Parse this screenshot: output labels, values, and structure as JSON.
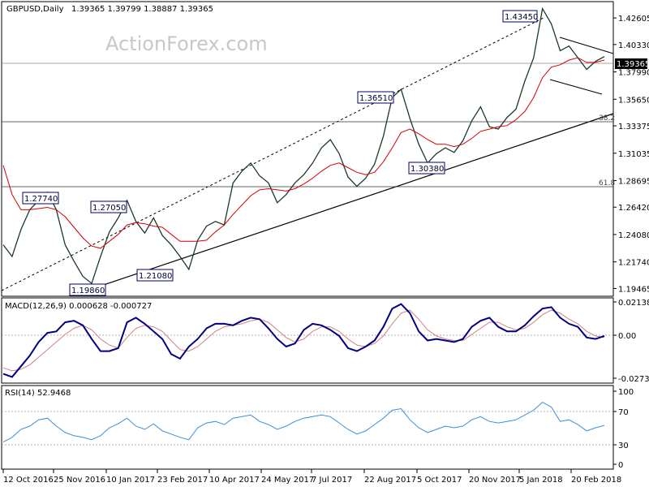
{
  "header": {
    "symbol": "GBPUSD,Daily",
    "ohlc": "1.39365 1.39799 1.38887 1.39365"
  },
  "watermark": "ActionForex.com",
  "chart_data": [
    {
      "type": "line",
      "title": "GBPUSD,Daily",
      "yticks": [
        "1.42605",
        "1.40330",
        "1.37990",
        "1.35650",
        "1.33375",
        "1.31035",
        "1.28695",
        "1.26420",
        "1.24080",
        "1.21740",
        "1.19465"
      ],
      "ylim": [
        1.188,
        1.44
      ],
      "current_price_label": "1.39365",
      "xticks": [
        "12 Oct 2016",
        "25 Nov 2016",
        "10 Jan 2017",
        "23 Feb 2017",
        "10 Apr 2017",
        "24 May 2017",
        "7 Jul 2017",
        "22 Aug 2017",
        "5 Oct 2017",
        "20 Nov 2017",
        "5 Jan 2018",
        "20 Feb 2018"
      ],
      "annotations": [
        "1.43450",
        "1.36510",
        "1.30380",
        "1.27740",
        "1.27050",
        "1.21080",
        "1.19860"
      ],
      "fib_labels": [
        "38.2",
        "61.8"
      ],
      "series": [
        {
          "values": [
            1.232,
            1.222,
            1.245,
            1.262,
            1.27,
            1.277,
            1.262,
            1.232,
            1.218,
            1.205,
            1.199,
            1.222,
            1.243,
            1.255,
            1.27,
            1.252,
            1.242,
            1.255,
            1.24,
            1.232,
            1.222,
            1.211,
            1.236,
            1.248,
            1.252,
            1.249,
            1.285,
            1.295,
            1.302,
            1.291,
            1.285,
            1.268,
            1.275,
            1.285,
            1.292,
            1.302,
            1.315,
            1.322,
            1.31,
            1.29,
            1.282,
            1.289,
            1.301,
            1.325,
            1.358,
            1.365,
            1.34,
            1.318,
            1.302,
            1.31,
            1.315,
            1.311,
            1.321,
            1.338,
            1.35,
            1.333,
            1.331,
            1.341,
            1.348,
            1.372,
            1.392,
            1.434,
            1.421,
            1.398,
            1.402,
            1.392,
            1.382,
            1.389,
            1.393
          ]
        },
        {
          "values": [
            1.3,
            1.275,
            1.262,
            1.262,
            1.263,
            1.264,
            1.262,
            1.256,
            1.247,
            1.238,
            1.231,
            1.229,
            1.235,
            1.241,
            1.249,
            1.251,
            1.25,
            1.248,
            1.247,
            1.241,
            1.235,
            1.235,
            1.235,
            1.236,
            1.243,
            1.249,
            1.258,
            1.266,
            1.274,
            1.279,
            1.28,
            1.279,
            1.278,
            1.28,
            1.284,
            1.289,
            1.295,
            1.3,
            1.302,
            1.298,
            1.294,
            1.292,
            1.294,
            1.303,
            1.315,
            1.328,
            1.331,
            1.327,
            1.322,
            1.318,
            1.318,
            1.316,
            1.318,
            1.323,
            1.329,
            1.331,
            1.333,
            1.334,
            1.339,
            1.346,
            1.358,
            1.375,
            1.384,
            1.386,
            1.39,
            1.392,
            1.388,
            1.388,
            1.39
          ]
        }
      ]
    },
    {
      "type": "line",
      "title": "MACD(12,26,9) 0.000628 -0.000727",
      "yticks": [
        "0.021384",
        "0.00",
        "-0.027353"
      ],
      "ylim": [
        -0.029,
        0.025
      ],
      "series": [
        {
          "values": [
            -0.024,
            -0.026,
            -0.019,
            -0.012,
            -0.003,
            0.003,
            0.004,
            0.01,
            0.011,
            0.008,
            -0.001,
            -0.009,
            -0.009,
            -0.007,
            0.01,
            0.013,
            0.009,
            0.004,
            -0.001,
            -0.011,
            -0.014,
            -0.006,
            -0.001,
            0.006,
            0.009,
            0.009,
            0.008,
            0.011,
            0.013,
            0.012,
            0.006,
            -0.001,
            -0.006,
            -0.004,
            0.005,
            0.009,
            0.008,
            0.005,
            0.001,
            -0.007,
            -0.009,
            -0.006,
            -0.002,
            0.007,
            0.019,
            0.022,
            0.016,
            0.004,
            -0.002,
            -0.001,
            -0.002,
            -0.003,
            -0.001,
            0.007,
            0.011,
            0.013,
            0.007,
            0.004,
            0.004,
            0.008,
            0.014,
            0.019,
            0.02,
            0.013,
            0.009,
            0.007,
            0.0,
            -0.001,
            0.001
          ]
        },
        {
          "values": [
            -0.02,
            -0.022,
            -0.021,
            -0.018,
            -0.013,
            -0.008,
            -0.003,
            0.002,
            0.006,
            0.008,
            0.005,
            -0.001,
            -0.005,
            -0.007,
            0.0,
            0.006,
            0.008,
            0.007,
            0.004,
            -0.002,
            -0.008,
            -0.009,
            -0.006,
            -0.001,
            0.004,
            0.007,
            0.008,
            0.009,
            0.011,
            0.012,
            0.01,
            0.005,
            0.0,
            -0.003,
            -0.001,
            0.004,
            0.007,
            0.007,
            0.004,
            -0.001,
            -0.005,
            -0.006,
            -0.004,
            0.001,
            0.009,
            0.016,
            0.018,
            0.012,
            0.005,
            0.001,
            -0.001,
            -0.002,
            -0.002,
            0.002,
            0.006,
            0.01,
            0.01,
            0.007,
            0.005,
            0.006,
            0.01,
            0.015,
            0.018,
            0.016,
            0.012,
            0.009,
            0.004,
            0.001,
            0.0
          ]
        }
      ]
    },
    {
      "type": "line",
      "title": "RSI(14) 52.9468",
      "yticks": [
        "100",
        "70",
        "30",
        "0"
      ],
      "ylim": [
        0,
        100
      ],
      "series": [
        {
          "values": [
            32,
            38,
            48,
            52,
            60,
            62,
            52,
            44,
            40,
            38,
            35,
            40,
            50,
            55,
            62,
            52,
            48,
            55,
            46,
            42,
            38,
            35,
            50,
            56,
            58,
            54,
            62,
            64,
            66,
            58,
            54,
            48,
            52,
            58,
            62,
            64,
            66,
            64,
            56,
            48,
            42,
            46,
            54,
            62,
            72,
            74,
            60,
            50,
            44,
            48,
            52,
            50,
            52,
            60,
            64,
            58,
            56,
            58,
            60,
            66,
            72,
            82,
            76,
            58,
            60,
            54,
            46,
            50,
            53
          ]
        }
      ]
    }
  ]
}
